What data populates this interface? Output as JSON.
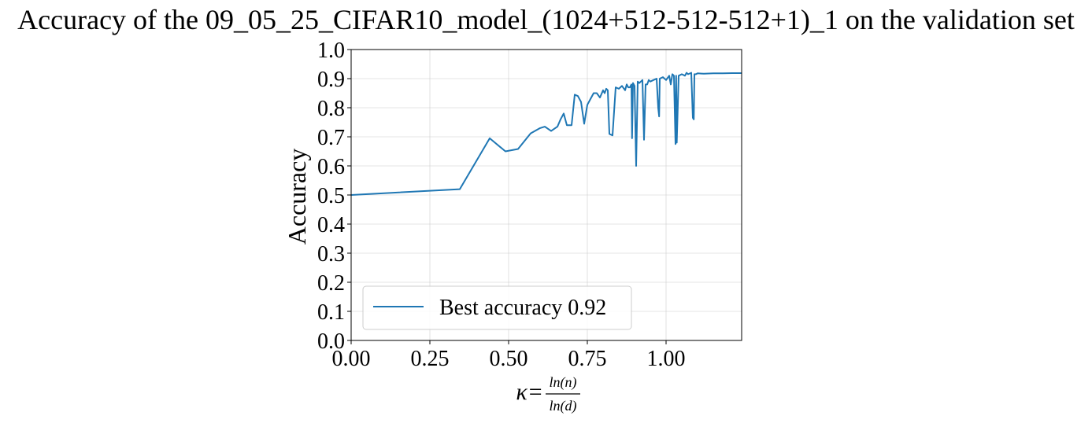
{
  "chart_data": {
    "type": "line",
    "title": "Accuracy of the 09_05_25_CIFAR10_model_(1024+512-512-512+1)_1 on the validation set",
    "xlabel": {
      "prefix": "κ=",
      "numerator": "ln(n)",
      "denominator": "ln(d)"
    },
    "ylabel": "Accuracy",
    "xlim": [
      0,
      1.24
    ],
    "ylim": [
      0,
      1.0
    ],
    "x_ticks": [
      "0.00",
      "0.25",
      "0.50",
      "0.75",
      "1.00"
    ],
    "y_ticks": [
      "0.0",
      "0.1",
      "0.2",
      "0.3",
      "0.4",
      "0.5",
      "0.6",
      "0.7",
      "0.8",
      "0.9",
      "1.0"
    ],
    "grid": true,
    "legend_position": "lower-left",
    "series": [
      {
        "name": "Best accuracy 0.92",
        "color": "#1f77b4",
        "x": [
          0.0,
          0.345,
          0.44,
          0.49,
          0.53,
          0.57,
          0.6,
          0.615,
          0.635,
          0.655,
          0.665,
          0.675,
          0.685,
          0.69,
          0.7,
          0.71,
          0.72,
          0.73,
          0.74,
          0.75,
          0.76,
          0.77,
          0.78,
          0.79,
          0.8,
          0.805,
          0.81,
          0.815,
          0.82,
          0.83,
          0.84,
          0.85,
          0.86,
          0.87,
          0.875,
          0.88,
          0.885,
          0.89,
          0.892,
          0.895,
          0.9,
          0.905,
          0.91,
          0.915,
          0.92,
          0.925,
          0.93,
          0.935,
          0.94,
          0.945,
          0.95,
          0.96,
          0.97,
          0.975,
          0.978,
          0.98,
          0.99,
          1.0,
          1.01,
          1.015,
          1.02,
          1.025,
          1.03,
          1.032,
          1.034,
          1.04,
          1.05,
          1.06,
          1.065,
          1.07,
          1.08,
          1.085,
          1.088,
          1.09,
          1.095,
          1.1,
          1.12,
          1.15,
          1.18,
          1.21,
          1.24
        ],
        "y": [
          0.5,
          0.52,
          0.695,
          0.65,
          0.658,
          0.712,
          0.73,
          0.735,
          0.72,
          0.735,
          0.76,
          0.78,
          0.74,
          0.74,
          0.74,
          0.845,
          0.84,
          0.82,
          0.745,
          0.81,
          0.83,
          0.85,
          0.85,
          0.835,
          0.86,
          0.85,
          0.865,
          0.86,
          0.71,
          0.705,
          0.87,
          0.865,
          0.875,
          0.86,
          0.88,
          0.87,
          0.87,
          0.88,
          0.695,
          0.885,
          0.875,
          0.6,
          0.89,
          0.885,
          0.89,
          0.895,
          0.69,
          0.88,
          0.88,
          0.895,
          0.89,
          0.895,
          0.9,
          0.8,
          0.77,
          0.9,
          0.905,
          0.895,
          0.91,
          0.88,
          0.915,
          0.91,
          0.675,
          0.91,
          0.68,
          0.91,
          0.915,
          0.91,
          0.92,
          0.915,
          0.92,
          0.765,
          0.76,
          0.915,
          0.915,
          0.918,
          0.917,
          0.918,
          0.918,
          0.919,
          0.919
        ]
      }
    ]
  }
}
